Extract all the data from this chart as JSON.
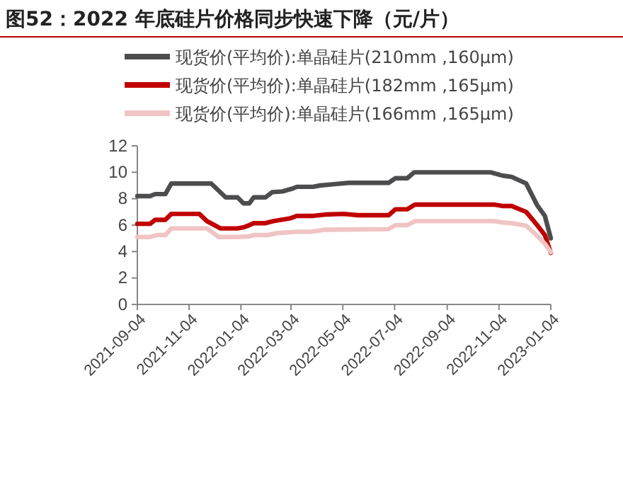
{
  "chart_data": {
    "type": "line",
    "title": "图52：2022 年底硅片价格同步快速下降（元/片）",
    "xlim": [
      "2021-09-04",
      "2023-01-04"
    ],
    "xticks": [
      "2021-09-04",
      "2021-11-04",
      "2022-01-04",
      "2022-03-04",
      "2022-05-04",
      "2022-07-04",
      "2022-09-04",
      "2022-11-04",
      "2023-01-04"
    ],
    "ylim": [
      0,
      12
    ],
    "yticks": [
      0,
      2,
      4,
      6,
      8,
      10,
      12
    ],
    "grid": false,
    "legend": "top",
    "line_style": "solid",
    "marker": "none",
    "series": [
      {
        "name": "现货价(平均价):单晶硅片(210mm ,160μm)",
        "color": "#4d4d4f",
        "x": [
          "2021-09-04",
          "2021-09-19",
          "2021-09-25",
          "2021-10-07",
          "2021-10-14",
          "2021-11-30",
          "2021-12-17",
          "2021-12-31",
          "2022-01-07",
          "2022-01-14",
          "2022-01-19",
          "2022-02-02",
          "2022-02-10",
          "2022-02-22",
          "2022-03-05",
          "2022-03-11",
          "2022-03-30",
          "2022-04-07",
          "2022-04-24",
          "2022-05-11",
          "2022-06-27",
          "2022-07-05",
          "2022-07-19",
          "2022-07-27",
          "2022-10-25",
          "2022-11-08",
          "2022-11-19",
          "2022-12-06",
          "2022-12-19",
          "2022-12-28",
          "2023-01-04"
        ],
        "values": [
          8.2,
          8.2,
          8.35,
          8.35,
          9.15,
          9.15,
          8.1,
          8.1,
          7.65,
          7.65,
          8.1,
          8.1,
          8.5,
          8.55,
          8.75,
          8.9,
          8.9,
          9.0,
          9.1,
          9.2,
          9.2,
          9.55,
          9.55,
          10.0,
          10.0,
          9.75,
          9.65,
          9.15,
          7.5,
          6.7,
          5.0
        ]
      },
      {
        "name": "现货价(平均价):单晶硅片(182mm ,165μm)",
        "color": "#c00000",
        "x": [
          "2021-09-04",
          "2021-09-19",
          "2021-09-25",
          "2021-10-07",
          "2021-10-14",
          "2021-11-16",
          "2021-11-25",
          "2021-12-11",
          "2021-12-31",
          "2022-01-08",
          "2022-01-14",
          "2022-01-19",
          "2022-02-02",
          "2022-02-11",
          "2022-03-02",
          "2022-03-11",
          "2022-03-30",
          "2022-04-13",
          "2022-05-05",
          "2022-05-22",
          "2022-06-27",
          "2022-07-05",
          "2022-07-19",
          "2022-07-28",
          "2022-10-30",
          "2022-11-08",
          "2022-11-19",
          "2022-12-06",
          "2022-12-19",
          "2022-12-28",
          "2023-01-04"
        ],
        "values": [
          6.1,
          6.1,
          6.4,
          6.4,
          6.85,
          6.85,
          6.3,
          5.75,
          5.75,
          5.85,
          6.0,
          6.15,
          6.15,
          6.3,
          6.5,
          6.7,
          6.7,
          6.8,
          6.85,
          6.75,
          6.75,
          7.2,
          7.2,
          7.55,
          7.55,
          7.45,
          7.45,
          7.0,
          6.0,
          5.25,
          3.9
        ]
      },
      {
        "name": "现货价(平均价):单晶硅片(166mm ,165μm)",
        "color": "#f0c4c4",
        "x": [
          "2021-09-04",
          "2021-09-19",
          "2021-09-27",
          "2021-10-07",
          "2021-10-14",
          "2021-11-25",
          "2021-12-09",
          "2021-12-31",
          "2022-01-14",
          "2022-01-19",
          "2022-02-05",
          "2022-02-16",
          "2022-03-11",
          "2022-03-27",
          "2022-04-13",
          "2022-06-27",
          "2022-07-05",
          "2022-07-19",
          "2022-07-28",
          "2022-10-30",
          "2022-11-08",
          "2022-11-19",
          "2022-12-06",
          "2022-12-19",
          "2022-12-28",
          "2023-01-04"
        ],
        "values": [
          5.1,
          5.1,
          5.25,
          5.25,
          5.75,
          5.75,
          5.1,
          5.1,
          5.15,
          5.25,
          5.25,
          5.4,
          5.5,
          5.5,
          5.65,
          5.7,
          6.0,
          6.0,
          6.3,
          6.3,
          6.2,
          6.15,
          5.95,
          5.2,
          4.6,
          3.95
        ]
      }
    ]
  }
}
